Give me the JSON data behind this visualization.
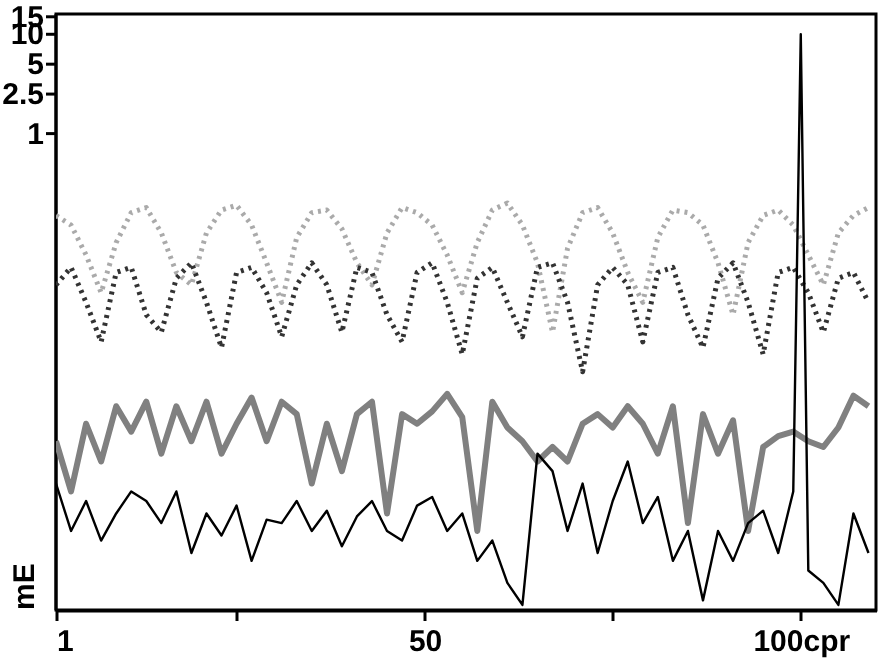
{
  "chart_data": {
    "type": "line",
    "ylabel": "mE",
    "log": "y",
    "grid": false,
    "xlim": [
      1,
      110
    ],
    "xticks": [
      1,
      {
        "value": 25,
        "label": null
      },
      50,
      {
        "value": 75,
        "label": null
      },
      {
        "value": 100,
        "label": "100cpr"
      }
    ],
    "ylim": [
      1.6e-05,
      16
    ],
    "yticks": [
      1,
      2.5,
      5,
      10,
      15
    ],
    "x": [
      1,
      3,
      5,
      7,
      9,
      11,
      13,
      15,
      17,
      19,
      21,
      23,
      25,
      27,
      29,
      31,
      33,
      35,
      37,
      39,
      41,
      43,
      45,
      47,
      49,
      51,
      53,
      55,
      57,
      59,
      61,
      63,
      65,
      67,
      69,
      71,
      73,
      75,
      77,
      79,
      81,
      83,
      85,
      87,
      89,
      91,
      93,
      95,
      97,
      99,
      101,
      103,
      105,
      107,
      109
    ],
    "series": [
      {
        "color": "#aaaaaa",
        "line_style": "dotted",
        "values": [
          0.15,
          0.12,
          0.06,
          0.025,
          0.08,
          0.16,
          0.18,
          0.1,
          0.04,
          0.03,
          0.1,
          0.17,
          0.19,
          0.12,
          0.05,
          0.02,
          0.09,
          0.16,
          0.17,
          0.11,
          0.05,
          0.03,
          0.1,
          0.18,
          0.16,
          0.12,
          0.06,
          0.025,
          0.08,
          0.17,
          0.2,
          0.12,
          0.05,
          0.01,
          0.07,
          0.16,
          0.18,
          0.1,
          0.04,
          0.02,
          0.09,
          0.17,
          0.16,
          0.12,
          0.05,
          0.015,
          0.08,
          0.15,
          0.17,
          0.12,
          0.06,
          0.03,
          0.1,
          0.15,
          0.18
        ]
      },
      {
        "color": "#333333",
        "line_style": "dotted",
        "values": [
          0.03,
          0.045,
          0.02,
          0.008,
          0.04,
          0.045,
          0.015,
          0.01,
          0.035,
          0.05,
          0.02,
          0.007,
          0.04,
          0.045,
          0.025,
          0.009,
          0.03,
          0.05,
          0.03,
          0.01,
          0.045,
          0.04,
          0.015,
          0.008,
          0.04,
          0.05,
          0.02,
          0.006,
          0.035,
          0.045,
          0.02,
          0.009,
          0.045,
          0.05,
          0.02,
          0.004,
          0.03,
          0.045,
          0.03,
          0.008,
          0.04,
          0.045,
          0.015,
          0.007,
          0.035,
          0.05,
          0.02,
          0.006,
          0.04,
          0.045,
          0.025,
          0.01,
          0.035,
          0.04,
          0.02
        ]
      },
      {
        "color": "#808080",
        "line_style": "solid",
        "values": [
          0.0008,
          0.00025,
          0.0012,
          0.0005,
          0.0018,
          0.001,
          0.002,
          0.0006,
          0.0018,
          0.0008,
          0.002,
          0.0006,
          0.0012,
          0.0022,
          0.0008,
          0.002,
          0.0015,
          0.0003,
          0.0012,
          0.0004,
          0.0015,
          0.002,
          0.00015,
          0.0015,
          0.0012,
          0.0016,
          0.0024,
          0.0014,
          0.0001,
          0.002,
          0.0011,
          0.0008,
          0.0005,
          0.0007,
          0.0005,
          0.0012,
          0.0015,
          0.0011,
          0.0018,
          0.0012,
          0.0006,
          0.0018,
          0.00012,
          0.0015,
          0.0006,
          0.0013,
          0.0001,
          0.0007,
          0.0009,
          0.001,
          0.0008,
          0.0007,
          0.0011,
          0.0023,
          0.0018
        ]
      },
      {
        "color": "#000000",
        "line_style": "solid",
        "x": [
          1,
          3,
          5,
          7,
          9,
          11,
          13,
          15,
          17,
          19,
          21,
          23,
          25,
          27,
          29,
          31,
          33,
          35,
          37,
          39,
          41,
          43,
          45,
          47,
          49,
          51,
          53,
          55,
          57,
          59,
          61,
          63,
          65,
          67,
          69,
          71,
          73,
          75,
          77,
          79,
          81,
          83,
          85,
          87,
          89,
          91,
          93,
          95,
          97,
          99,
          100,
          101,
          103,
          105,
          107,
          109
        ],
        "values": [
          0.0003,
          0.0001,
          0.0002,
          8e-05,
          0.00015,
          0.00025,
          0.0002,
          0.00012,
          0.00025,
          6e-05,
          0.00015,
          9e-05,
          0.00018,
          5e-05,
          0.00013,
          0.00012,
          0.0002,
          0.0001,
          0.00016,
          7e-05,
          0.00014,
          0.0002,
          0.0001,
          8e-05,
          0.00018,
          0.00022,
          0.0001,
          0.00015,
          5e-05,
          8e-05,
          3e-05,
          1.8e-05,
          0.0006,
          0.0004,
          0.0001,
          0.0003,
          6e-05,
          0.0002,
          0.0005,
          0.00012,
          0.00022,
          5e-05,
          0.0001,
          2e-05,
          0.0001,
          5e-05,
          0.00012,
          0.00016,
          6e-05,
          0.00025,
          10,
          4e-05,
          3e-05,
          1.8e-05,
          0.00015,
          6e-05
        ]
      }
    ]
  }
}
